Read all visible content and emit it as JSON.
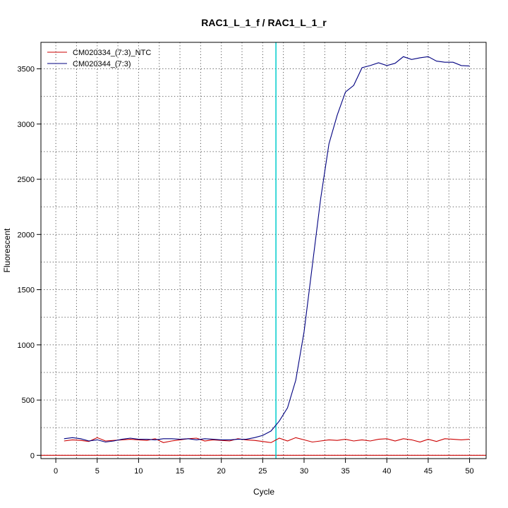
{
  "chart_data": {
    "type": "line",
    "title": "RAC1_L_1_f / RAC1_L_1_r",
    "xlabel": "Cycle",
    "ylabel": "Fluorescent",
    "xlim": [
      -1.8,
      52
    ],
    "ylim": [
      -30,
      3740
    ],
    "x_ticks": [
      0,
      5,
      10,
      15,
      20,
      25,
      30,
      35,
      40,
      45,
      50
    ],
    "y_ticks": [
      0,
      500,
      1000,
      1500,
      2000,
      2500,
      3000,
      3500
    ],
    "grid": true,
    "legend_position": "top-left",
    "threshold_cycle": 26.6,
    "threshold_color": "#00cccc",
    "baseline_value": 0,
    "baseline_color": "#cc0000",
    "series": [
      {
        "name": "CM020334_(7:3)_NTC",
        "color": "#cc0000",
        "x": [
          1,
          2,
          3,
          4,
          5,
          6,
          7,
          8,
          9,
          10,
          11,
          12,
          13,
          14,
          15,
          16,
          17,
          18,
          19,
          20,
          21,
          22,
          23,
          24,
          25,
          26,
          27,
          28,
          29,
          30,
          31,
          32,
          33,
          34,
          35,
          36,
          37,
          38,
          39,
          40,
          41,
          42,
          43,
          44,
          45,
          46,
          47,
          48,
          49,
          50
        ],
        "values": [
          130,
          140,
          135,
          125,
          160,
          130,
          135,
          140,
          145,
          140,
          135,
          150,
          115,
          130,
          140,
          150,
          155,
          130,
          140,
          135,
          130,
          150,
          140,
          135,
          125,
          115,
          155,
          130,
          160,
          140,
          120,
          130,
          140,
          135,
          145,
          130,
          140,
          130,
          145,
          150,
          130,
          150,
          140,
          120,
          145,
          125,
          150,
          145,
          140,
          145
        ]
      },
      {
        "name": "CM020344_(7:3)",
        "color": "#000080",
        "x": [
          1,
          2,
          3,
          4,
          5,
          6,
          7,
          8,
          9,
          10,
          11,
          12,
          13,
          14,
          15,
          16,
          17,
          18,
          19,
          20,
          21,
          22,
          23,
          24,
          25,
          26,
          27,
          28,
          29,
          30,
          31,
          32,
          33,
          34,
          35,
          36,
          37,
          38,
          39,
          40,
          41,
          42,
          43,
          44,
          45,
          46,
          47,
          48,
          49,
          50
        ],
        "values": [
          150,
          160,
          150,
          130,
          140,
          120,
          130,
          145,
          155,
          145,
          145,
          140,
          150,
          150,
          145,
          150,
          140,
          150,
          145,
          140,
          140,
          145,
          145,
          160,
          180,
          220,
          310,
          430,
          680,
          1120,
          1720,
          2320,
          2820,
          3080,
          3290,
          3350,
          3510,
          3530,
          3555,
          3530,
          3550,
          3610,
          3585,
          3600,
          3610,
          3570,
          3560,
          3560,
          3530,
          3525
        ]
      }
    ]
  }
}
